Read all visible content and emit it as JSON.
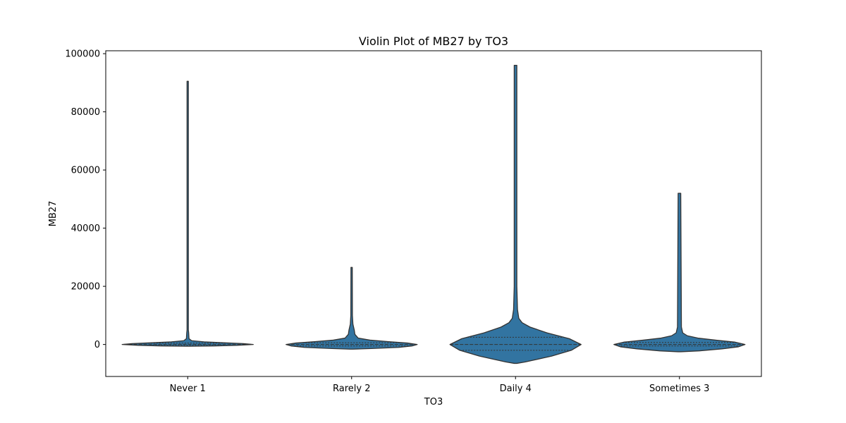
{
  "chart_data": {
    "type": "violin",
    "title": "Violin Plot of MB27 by TO3",
    "xlabel": "TO3",
    "ylabel": "MB27",
    "categories": [
      "Never 1",
      "Rarely 2",
      "Daily 4",
      "Sometimes 3"
    ],
    "ylim": [
      -11000,
      101000
    ],
    "yticks": [
      0,
      20000,
      40000,
      60000,
      80000,
      100000
    ],
    "ytick_labels": [
      "0",
      "20000",
      "40000",
      "60000",
      "80000",
      "100000"
    ],
    "grid": false,
    "legend": "none",
    "color": "#3274a1",
    "edge_color": "#333333",
    "violins": [
      {
        "category": "Never 1",
        "min": -600,
        "max": 90500,
        "q1": -300,
        "median": 50,
        "q3": 500,
        "profile": [
          [
            -600,
            0.02
          ],
          [
            -500,
            0.4
          ],
          [
            -300,
            0.75
          ],
          [
            0,
            1.0
          ],
          [
            300,
            0.85
          ],
          [
            600,
            0.55
          ],
          [
            900,
            0.25
          ],
          [
            1300,
            0.06
          ],
          [
            2000,
            0.02
          ],
          [
            4000,
            0.015
          ],
          [
            5000,
            0.01
          ],
          [
            90500,
            0.01
          ]
        ]
      },
      {
        "category": "Rarely 2",
        "min": -1600,
        "max": 26500,
        "q1": -500,
        "median": 0,
        "q3": 600,
        "profile": [
          [
            -1600,
            0.02
          ],
          [
            -1400,
            0.3
          ],
          [
            -1000,
            0.72
          ],
          [
            -500,
            0.92
          ],
          [
            0,
            1.0
          ],
          [
            500,
            0.85
          ],
          [
            1000,
            0.55
          ],
          [
            1500,
            0.28
          ],
          [
            2200,
            0.1
          ],
          [
            3500,
            0.05
          ],
          [
            5000,
            0.04
          ],
          [
            7000,
            0.02
          ],
          [
            10000,
            0.012
          ],
          [
            26500,
            0.01
          ]
        ]
      },
      {
        "category": "Daily 4",
        "min": -6500,
        "max": 96000,
        "q1": -2000,
        "median": 0,
        "q3": 2500,
        "profile": [
          [
            -6500,
            0.02
          ],
          [
            -6000,
            0.15
          ],
          [
            -4000,
            0.55
          ],
          [
            -2000,
            0.85
          ],
          [
            0,
            1.0
          ],
          [
            2000,
            0.82
          ],
          [
            4000,
            0.48
          ],
          [
            6000,
            0.22
          ],
          [
            7500,
            0.1
          ],
          [
            9000,
            0.05
          ],
          [
            12000,
            0.03
          ],
          [
            20000,
            0.02
          ],
          [
            96000,
            0.02
          ]
        ]
      },
      {
        "category": "Sometimes 3",
        "min": -2500,
        "max": 52000,
        "q1": -500,
        "median": 0,
        "q3": 700,
        "profile": [
          [
            -2500,
            0.02
          ],
          [
            -2200,
            0.3
          ],
          [
            -1500,
            0.65
          ],
          [
            -800,
            0.9
          ],
          [
            0,
            1.0
          ],
          [
            800,
            0.85
          ],
          [
            1500,
            0.55
          ],
          [
            2200,
            0.28
          ],
          [
            3000,
            0.12
          ],
          [
            4000,
            0.05
          ],
          [
            6000,
            0.03
          ],
          [
            52000,
            0.02
          ]
        ]
      }
    ]
  }
}
